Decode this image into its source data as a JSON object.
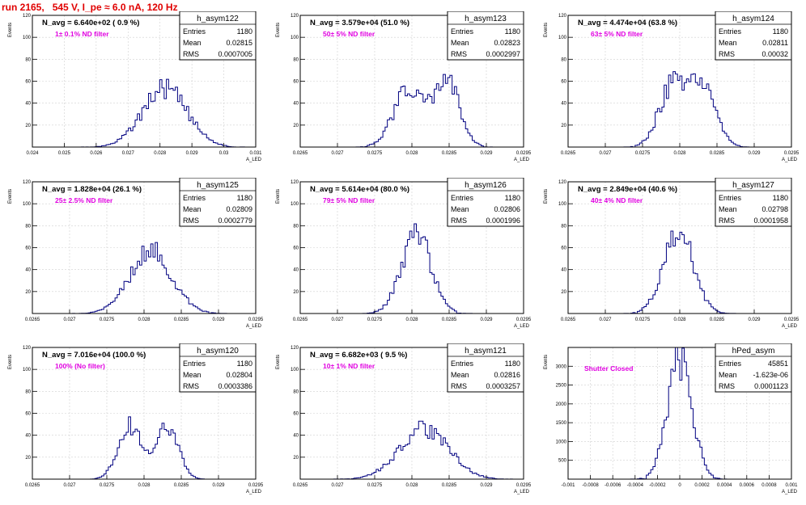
{
  "run_title": "run 2165,   545 V, I_pe ≈ 6.0 nA, 120 Hz",
  "stat_labels": {
    "entries": "Entries",
    "mean": "Mean",
    "rms": "RMS"
  },
  "colors": {
    "title": "#e00000",
    "annotation": "#e000e0",
    "histogram": "#000080",
    "grid": "#d0d0d0"
  },
  "chart_data": [
    {
      "type": "bar",
      "name": "h_asym122",
      "navg": "N_avg = 6.640e+02 ( 0.9 %)",
      "filter": "1± 0.1% ND filter",
      "entries": "1180",
      "mean": "0.02815",
      "rms": "0.0007005",
      "xlim": [
        0.024,
        0.031
      ],
      "ylim": [
        0,
        120
      ],
      "xticks": [
        "0.024",
        "0.025",
        "0.026",
        "0.027",
        "0.028",
        "0.029",
        "0.03",
        "0.031"
      ],
      "yticks": [
        "20",
        "40",
        "60",
        "80",
        "100",
        "120"
      ],
      "ylabel": "Events",
      "xlabel": "A_LED",
      "center": 0.02815,
      "sigma": 0.0007,
      "peak": 53,
      "modes": [
        [
          0.02815,
          0.0007,
          1
        ]
      ]
    },
    {
      "type": "bar",
      "name": "h_asym123",
      "navg": "N_avg = 3.579e+04 (51.0 %)",
      "filter": "50± 5% ND filter",
      "entries": "1180",
      "mean": "0.02823",
      "rms": "0.0002997",
      "xlim": [
        0.0265,
        0.0295
      ],
      "ylim": [
        0,
        120
      ],
      "xticks": [
        "0.0265",
        "0.027",
        "0.0275",
        "0.028",
        "0.0285",
        "0.029",
        "0.0295"
      ],
      "yticks": [
        "20",
        "40",
        "60",
        "80",
        "100",
        "120"
      ],
      "ylabel": "Events",
      "xlabel": "A_LED",
      "center": 0.02823,
      "sigma": 0.0003,
      "peak": 60,
      "modes": [
        [
          0.02795,
          0.0002,
          0.85
        ],
        [
          0.02847,
          0.00017,
          1
        ]
      ]
    },
    {
      "type": "bar",
      "name": "h_asym124",
      "navg": "N_avg = 4.474e+04 (63.8 %)",
      "filter": "63± 5% ND filter",
      "entries": "1180",
      "mean": "0.02811",
      "rms": "0.00032",
      "xlim": [
        0.0265,
        0.0295
      ],
      "ylim": [
        0,
        120
      ],
      "xticks": [
        "0.0265",
        "0.027",
        "0.0275",
        "0.028",
        "0.0285",
        "0.029",
        "0.0295"
      ],
      "yticks": [
        "20",
        "40",
        "60",
        "80",
        "100",
        "120"
      ],
      "ylabel": "Events",
      "xlabel": "A_LED",
      "center": 0.02811,
      "sigma": 0.00032,
      "peak": 55,
      "modes": [
        [
          0.0279,
          0.00018,
          1
        ],
        [
          0.0283,
          0.00018,
          0.95
        ]
      ]
    },
    {
      "type": "bar",
      "name": "h_asym125",
      "navg": "N_avg = 1.828e+04 (26.1 %)",
      "filter": "25± 2.5% ND filter",
      "entries": "1180",
      "mean": "0.02809",
      "rms": "0.0002779",
      "xlim": [
        0.0265,
        0.0295
      ],
      "ylim": [
        0,
        120
      ],
      "xticks": [
        "0.0265",
        "0.027",
        "0.0275",
        "0.028",
        "0.0285",
        "0.029",
        "0.0295"
      ],
      "yticks": [
        "20",
        "40",
        "60",
        "80",
        "100",
        "120"
      ],
      "ylabel": "Events",
      "xlabel": "A_LED",
      "center": 0.02809,
      "sigma": 0.00028,
      "peak": 58,
      "modes": [
        [
          0.02809,
          0.00028,
          1
        ]
      ]
    },
    {
      "type": "bar",
      "name": "h_asym126",
      "navg": "N_avg = 5.614e+04 (80.0 %)",
      "filter": "79± 5% ND filter",
      "entries": "1180",
      "mean": "0.02806",
      "rms": "0.0001996",
      "xlim": [
        0.0265,
        0.0295
      ],
      "ylim": [
        0,
        120
      ],
      "xticks": [
        "0.0265",
        "0.027",
        "0.0275",
        "0.028",
        "0.0285",
        "0.029",
        "0.0295"
      ],
      "yticks": [
        "20",
        "40",
        "60",
        "80",
        "100",
        "120"
      ],
      "ylabel": "Events",
      "xlabel": "A_LED",
      "center": 0.02806,
      "sigma": 0.0002,
      "peak": 72,
      "modes": [
        [
          0.02806,
          0.0002,
          1
        ]
      ]
    },
    {
      "type": "bar",
      "name": "h_asym127",
      "navg": "N_avg = 2.849e+04 (40.6 %)",
      "filter": "40± 4% ND filter",
      "entries": "1180",
      "mean": "0.02798",
      "rms": "0.0001958",
      "xlim": [
        0.0265,
        0.0295
      ],
      "ylim": [
        0,
        120
      ],
      "xticks": [
        "0.0265",
        "0.027",
        "0.0275",
        "0.028",
        "0.0285",
        "0.029",
        "0.0295"
      ],
      "yticks": [
        "20",
        "40",
        "60",
        "80",
        "100",
        "120"
      ],
      "ylabel": "Events",
      "xlabel": "A_LED",
      "center": 0.02798,
      "sigma": 0.0002,
      "peak": 76,
      "modes": [
        [
          0.02798,
          0.0002,
          1
        ]
      ]
    },
    {
      "type": "bar",
      "name": "h_asym120",
      "navg": "N_avg = 7.016e+04 (100.0 %)",
      "filter": "100% (No filter)",
      "entries": "1180",
      "mean": "0.02804",
      "rms": "0.0003386",
      "xlim": [
        0.0265,
        0.0295
      ],
      "ylim": [
        0,
        120
      ],
      "xticks": [
        "0.0265",
        "0.027",
        "0.0275",
        "0.028",
        "0.0285",
        "0.029",
        "0.0295"
      ],
      "yticks": [
        "20",
        "40",
        "60",
        "80",
        "100",
        "120"
      ],
      "ylabel": "Events",
      "xlabel": "A_LED",
      "center": 0.02804,
      "sigma": 0.00034,
      "peak": 50,
      "modes": [
        [
          0.0278,
          0.00015,
          1
        ],
        [
          0.0283,
          0.00015,
          1
        ]
      ]
    },
    {
      "type": "bar",
      "name": "h_asym121",
      "navg": "N_avg = 6.682e+03 ( 9.5 %)",
      "filter": "10± 1% ND filter",
      "entries": "1180",
      "mean": "0.02816",
      "rms": "0.0003257",
      "xlim": [
        0.0265,
        0.0295
      ],
      "ylim": [
        0,
        120
      ],
      "xticks": [
        "0.0265",
        "0.027",
        "0.0275",
        "0.028",
        "0.0285",
        "0.029",
        "0.0295"
      ],
      "yticks": [
        "20",
        "40",
        "60",
        "80",
        "100",
        "120"
      ],
      "ylabel": "Events",
      "xlabel": "A_LED",
      "center": 0.02816,
      "sigma": 0.00033,
      "peak": 46,
      "modes": [
        [
          0.02816,
          0.00033,
          1
        ]
      ]
    },
    {
      "type": "bar",
      "name": "hPed_asym",
      "navg": "",
      "filter": "Shutter Closed",
      "entries": "45851",
      "mean": "-1.623e-06",
      "rms": "0.0001123",
      "xlim": [
        -0.001,
        0.001
      ],
      "ylim": [
        0,
        3500
      ],
      "xticks": [
        "-0.001",
        "-0.0008",
        "-0.0006",
        "-0.0004",
        "-0.0002",
        "0",
        "0.0002",
        "0.0004",
        "0.0006",
        "0.0008",
        "0.001"
      ],
      "yticks": [
        "500",
        "1000",
        "1500",
        "2000",
        "2500",
        "3000"
      ],
      "ylabel": "Events",
      "xlabel": "A_LED",
      "center": -1.6e-06,
      "sigma": 0.000112,
      "peak": 3200,
      "modes": [
        [
          -1.6e-06,
          0.000112,
          1
        ]
      ]
    }
  ]
}
